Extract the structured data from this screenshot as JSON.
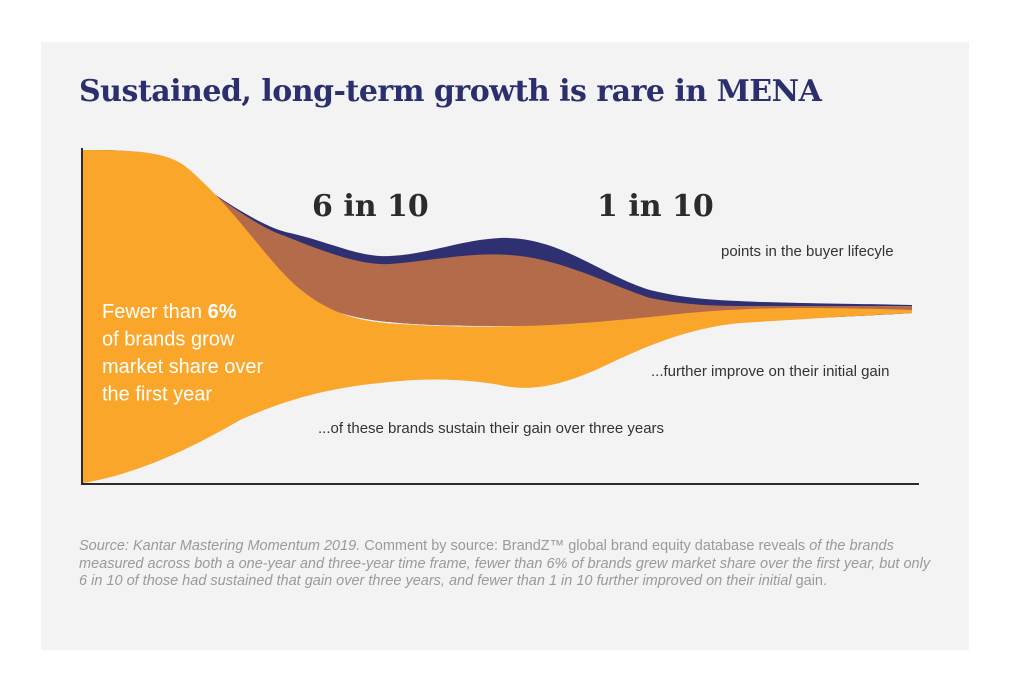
{
  "title": "Sustained, long-term growth is rare in MENA",
  "chart_data": {
    "type": "area",
    "title": "Sustained, long-term growth is rare in MENA",
    "xlabel": "",
    "ylabel": "",
    "grid": false,
    "legend": "none",
    "series": [
      {
        "color": "#f9a62b",
        "label_lines": [
          [
            {
              "text": "Fewer than ",
              "bold": false
            },
            {
              "text": "6%",
              "bold": true
            }
          ],
          [
            {
              "text": "of brands grow",
              "bold": false
            }
          ],
          [
            {
              "text": "market share over",
              "bold": false
            }
          ],
          [
            {
              "text": "the first year",
              "bold": false
            }
          ]
        ]
      },
      {
        "big_label": "6 in 10",
        "annotation": "...of these brands sustain their gain over three years",
        "color": "#b36b4a"
      },
      {
        "big_label": "1 in 10",
        "annotation": "...further improve on their initial gain",
        "color": "#2e3071"
      }
    ],
    "extra_annotation": "points in the buyer lifecyle"
  },
  "source": {
    "italic_1": "Source: Kantar Mastering Momentum 2019.",
    "plain_1": " Comment by source: BrandZ™ global brand equity database reveals ",
    "italic_2": "of the brands measured across both a one-year and three-year time frame, fewer than 6% of brands grew market share over the first year, but only 6 in 10 of those had sustained that gain over three years, and fewer than 1 in 10 further improved on their initial",
    "plain_2": " gain."
  }
}
